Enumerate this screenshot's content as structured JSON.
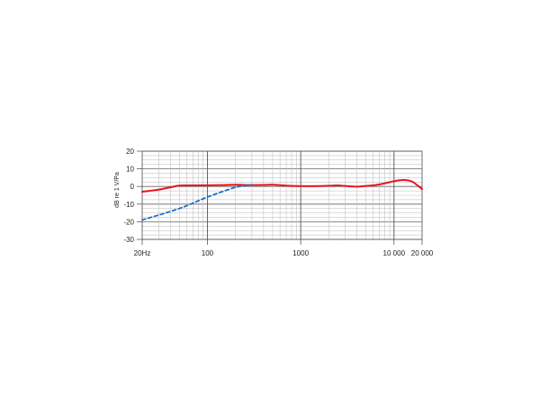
{
  "chart_data": {
    "type": "line",
    "title": "",
    "xlabel": "",
    "ylabel": "dB re 1 V/Pa",
    "xscale": "log",
    "xlim": [
      20,
      20000
    ],
    "ylim": [
      -30,
      20
    ],
    "grid": true,
    "x_ticks": [
      {
        "value": 20,
        "label": "20Hz"
      },
      {
        "value": 100,
        "label": "100"
      },
      {
        "value": 1000,
        "label": "1000"
      },
      {
        "value": 10000,
        "label": "10 000"
      },
      {
        "value": 20000,
        "label": "20 000"
      }
    ],
    "y_ticks": [
      {
        "value": 20,
        "label": "20"
      },
      {
        "value": 10,
        "label": "10"
      },
      {
        "value": 0,
        "label": "0"
      },
      {
        "value": -10,
        "label": "-10"
      },
      {
        "value": -20,
        "label": "-20"
      },
      {
        "value": -30,
        "label": "-30"
      }
    ],
    "series": [
      {
        "color": "#e8141c",
        "style": "solid",
        "x": [
          20,
          30,
          40,
          50,
          70,
          100,
          150,
          200,
          300,
          400,
          500,
          700,
          1000,
          1500,
          2000,
          2500,
          3000,
          4000,
          5000,
          6000,
          7000,
          8000,
          10000,
          12000,
          14000,
          16000,
          20000
        ],
        "y": [
          -3,
          -1.8,
          -0.5,
          0.5,
          0.6,
          0.7,
          0.8,
          1.0,
          0.8,
          0.9,
          1.0,
          0.5,
          0.2,
          0.2,
          0.4,
          0.6,
          0.3,
          -0.1,
          0.3,
          0.6,
          1.2,
          1.8,
          3.0,
          3.6,
          3.5,
          2.5,
          -1.5
        ]
      },
      {
        "color": "#1f6fc5",
        "style": "dashed",
        "x": [
          20,
          50,
          100,
          200,
          300
        ],
        "y": [
          -19,
          -12.5,
          -6,
          -0.5,
          1
        ]
      }
    ]
  }
}
